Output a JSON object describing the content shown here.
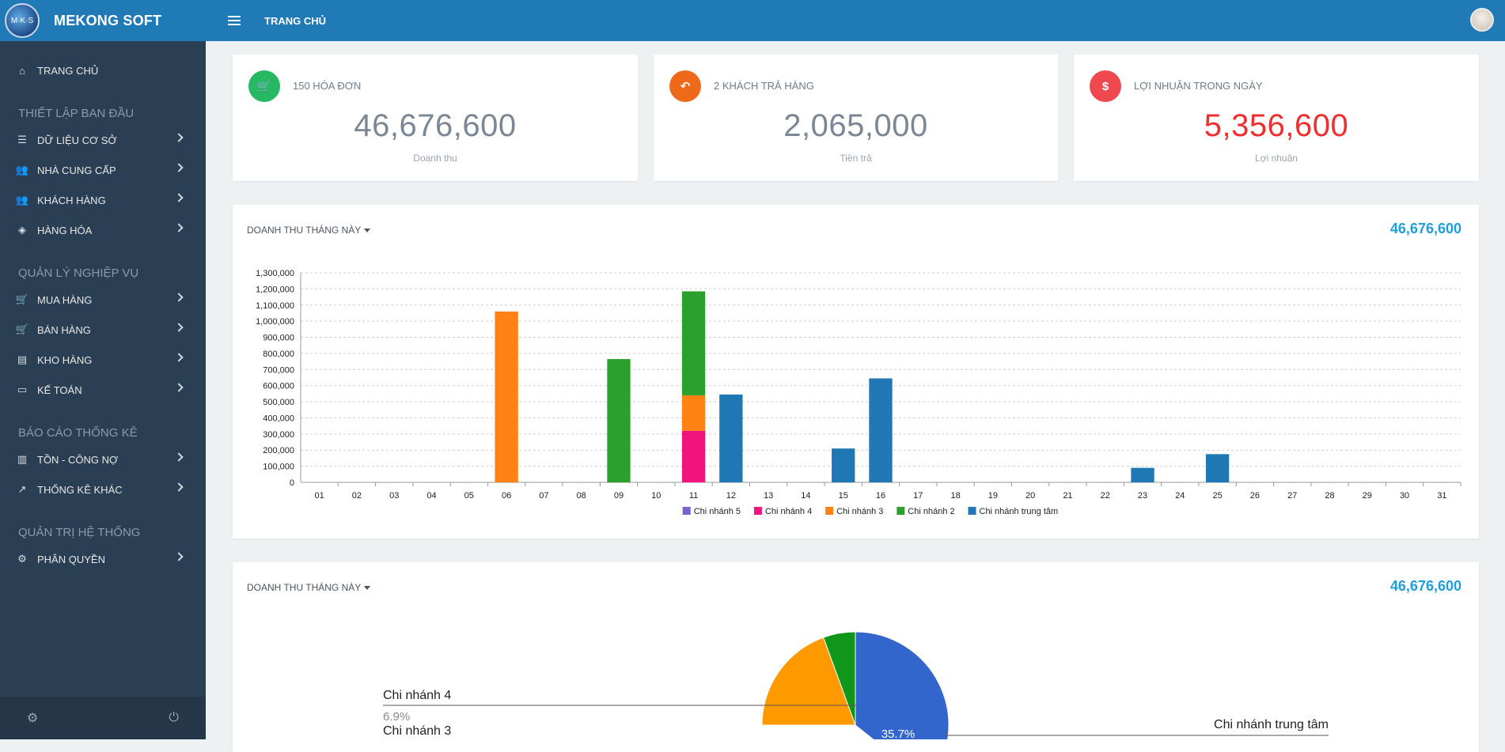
{
  "brand": {
    "name": "MEKONG SOFT",
    "logo_text": "M·K·S"
  },
  "topbar": {
    "title": "TRANG CHỦ"
  },
  "sidebar": {
    "home": "TRANG CHỦ",
    "sections": [
      {
        "title": "THIẾT LẬP BAN ĐẦU",
        "items": [
          "DỮ LIỆU CƠ SỞ",
          "NHÀ CUNG CẤP",
          "KHÁCH HÀNG",
          "HÀNG HÓA"
        ]
      },
      {
        "title": "QUẢN LÝ NGHIỆP VỤ",
        "items": [
          "MUA HÀNG",
          "BÁN HÀNG",
          "KHO HÀNG",
          "KẾ TOÁN"
        ]
      },
      {
        "title": "BÁO CÁO THỐNG KÊ",
        "items": [
          "TỒN - CÔNG NỢ",
          "THỐNG KÊ KHÁC"
        ]
      },
      {
        "title": "QUẢN TRỊ HỆ THỐNG",
        "items": [
          "PHÂN QUYỀN"
        ]
      }
    ]
  },
  "stats": [
    {
      "label": "150 HÓA ĐƠN",
      "value": "46,676,600",
      "sub": "Doanh thu",
      "color": "#26b862",
      "icon": "cart-icon",
      "value_color": "#7b8794"
    },
    {
      "label": "2 KHÁCH TRẢ HÀNG",
      "value": "2,065,000",
      "sub": "Tiền trả",
      "color": "#ee6a1a",
      "icon": "reply-icon",
      "value_color": "#7b8794"
    },
    {
      "label": "LỢI NHUẬN TRONG NGÀY",
      "value": "5,356,600",
      "sub": "Lợi nhuận",
      "color": "#f0484f",
      "icon": "dollar-icon",
      "value_color": "#ef2f2f"
    }
  ],
  "panels": [
    {
      "title": "DOANH THU THÁNG NÀY",
      "total": "46,676,600"
    },
    {
      "title": "DOANH THU THÁNG NÀY",
      "total": "46,676,600"
    }
  ],
  "chart_data": [
    {
      "type": "bar",
      "stacked": true,
      "categories": [
        "01",
        "02",
        "03",
        "04",
        "05",
        "06",
        "07",
        "08",
        "09",
        "10",
        "11",
        "12",
        "13",
        "14",
        "15",
        "16",
        "17",
        "18",
        "19",
        "20",
        "21",
        "22",
        "23",
        "24",
        "25",
        "26",
        "27",
        "28",
        "29",
        "30",
        "31"
      ],
      "ylim": [
        0,
        1300000
      ],
      "yticks": [
        "0",
        "100,000",
        "200,000",
        "300,000",
        "400,000",
        "500,000",
        "600,000",
        "700,000",
        "800,000",
        "900,000",
        "1,000,000",
        "1,100,000",
        "1,200,000",
        "1,300,000"
      ],
      "legend_position": "bottom",
      "grid": true,
      "series": [
        {
          "name": "Chi nhánh 5",
          "color": "#7b5fd3",
          "values": [
            0,
            0,
            0,
            0,
            0,
            0,
            0,
            0,
            0,
            0,
            0,
            0,
            0,
            0,
            0,
            0,
            0,
            0,
            0,
            0,
            0,
            0,
            0,
            0,
            0,
            0,
            0,
            0,
            0,
            0,
            0
          ]
        },
        {
          "name": "Chi nhánh 4",
          "color": "#f0147c",
          "values": [
            0,
            0,
            0,
            0,
            0,
            0,
            0,
            0,
            0,
            0,
            320000,
            0,
            0,
            0,
            0,
            0,
            0,
            0,
            0,
            0,
            0,
            0,
            0,
            0,
            0,
            0,
            0,
            0,
            0,
            0,
            0
          ]
        },
        {
          "name": "Chi nhánh 3",
          "color": "#ff8214",
          "values": [
            0,
            0,
            0,
            0,
            0,
            1060000,
            0,
            0,
            0,
            0,
            220000,
            0,
            0,
            0,
            0,
            0,
            0,
            0,
            0,
            0,
            0,
            0,
            0,
            0,
            0,
            0,
            0,
            0,
            0,
            0,
            0
          ]
        },
        {
          "name": "Chi nhánh 2",
          "color": "#2ca02c",
          "values": [
            0,
            0,
            0,
            0,
            0,
            0,
            0,
            0,
            765000,
            0,
            645000,
            0,
            0,
            0,
            0,
            0,
            0,
            0,
            0,
            0,
            0,
            0,
            0,
            0,
            0,
            0,
            0,
            0,
            0,
            0,
            0
          ]
        },
        {
          "name": "Chi nhánh trung tâm",
          "color": "#1f77b4",
          "values": [
            0,
            0,
            0,
            0,
            0,
            0,
            0,
            0,
            0,
            0,
            0,
            545000,
            0,
            0,
            210000,
            645000,
            0,
            0,
            0,
            0,
            0,
            0,
            90000,
            0,
            175000,
            0,
            0,
            0,
            0,
            0,
            0
          ]
        }
      ]
    },
    {
      "type": "pie",
      "slices": [
        {
          "name": "Chi nhánh trung tâm",
          "pct": "35.7%",
          "color": "#3366cc"
        },
        {
          "name": "Chi nhánh 4",
          "pct": "6.9%",
          "color": "#109618"
        },
        {
          "name": "Chi nhánh 3",
          "pct": "",
          "color": "#ff9900"
        }
      ]
    }
  ]
}
